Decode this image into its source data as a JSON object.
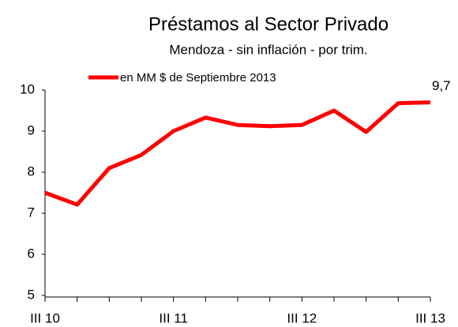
{
  "chart_data": {
    "type": "line",
    "title": "Préstamos al Sector Privado",
    "subtitle": "Mendoza - sin inflación - por trim.",
    "categories": [
      "III 10",
      null,
      null,
      null,
      "III 11",
      null,
      null,
      null,
      "III 12",
      null,
      null,
      null,
      "III 13"
    ],
    "series": [
      {
        "name": "en MM $ de Septiembre 2013",
        "color": "#ff0000",
        "values": [
          7.5,
          7.21,
          8.1,
          8.42,
          9.0,
          9.33,
          9.15,
          9.12,
          9.15,
          9.5,
          8.98,
          9.68,
          9.7
        ],
        "value_labels": [
          null,
          null,
          null,
          null,
          null,
          null,
          null,
          null,
          null,
          null,
          null,
          null,
          "9,7"
        ]
      }
    ],
    "ylim": [
      5,
      10
    ],
    "yticks": [
      5,
      6,
      7,
      8,
      9,
      10
    ],
    "grid": false,
    "legend": "top"
  }
}
